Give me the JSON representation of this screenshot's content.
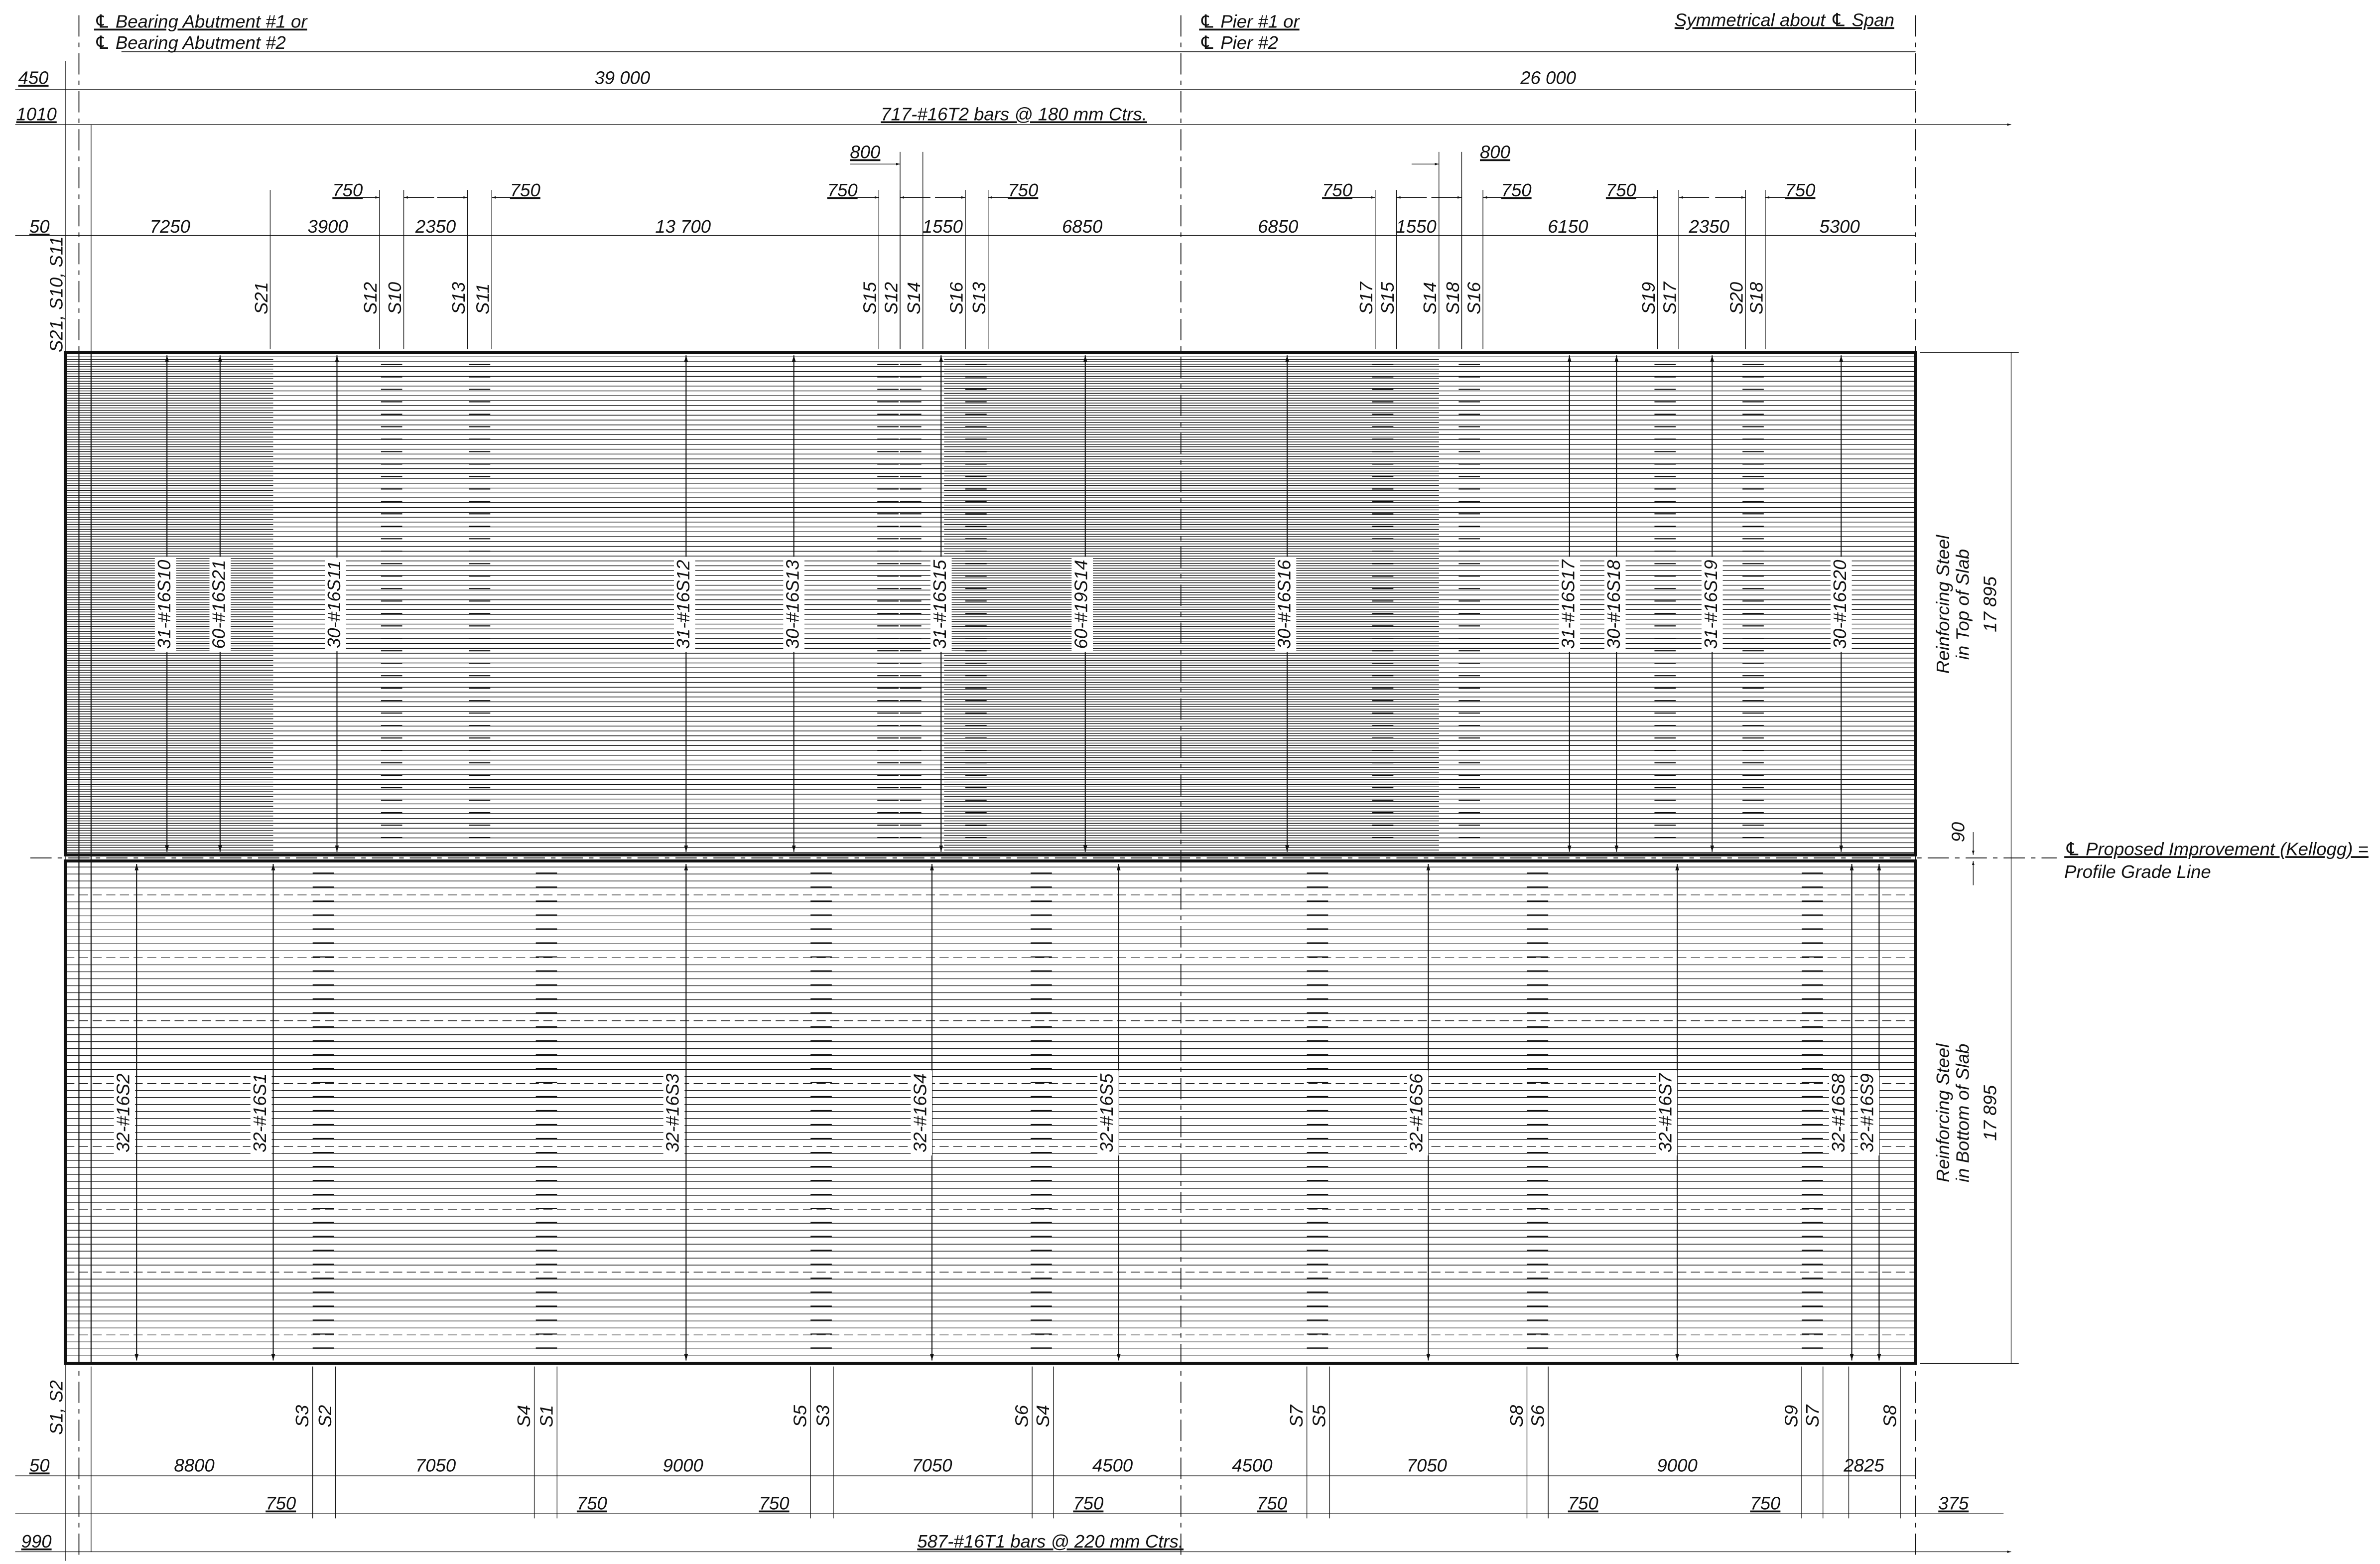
{
  "header": {
    "abutment_1": "℄ Bearing Abutment #1 or",
    "abutment_2": "℄ Bearing Abutment #2",
    "pier_1": "℄ Pier #1 or",
    "pier_2": "℄ Pier #2",
    "symmetry": "Symmetrical about ℄ Span"
  },
  "top_dims": {
    "overall": [
      "450",
      "39 000",
      "26 000"
    ],
    "bars": [
      "1010",
      "717-#16T2 bars @ 180 mm Ctrs."
    ],
    "laps_800": [
      "800",
      "800"
    ],
    "laps_750": [
      "750",
      "750",
      "750",
      "750",
      "750",
      "750",
      "750",
      "750"
    ],
    "spacing": [
      "50",
      "7250",
      "3900",
      "2350",
      "13 700",
      "1550",
      "6850",
      "6850",
      "1550",
      "6150",
      "2350",
      "5300"
    ]
  },
  "top_marks": [
    "S21, S10, S11",
    "S21",
    "S12",
    "S10",
    "S13",
    "S11",
    "S15",
    "S12",
    "S14",
    "S16",
    "S13",
    "S17",
    "S15",
    "S14",
    "S18",
    "S16",
    "S19",
    "S17",
    "S20",
    "S18"
  ],
  "top_bars": [
    "31-#16S10",
    "60-#16S21",
    "30-#16S11",
    "31-#16S12",
    "30-#16S13",
    "31-#16S15",
    "60-#19S14",
    "30-#16S16",
    "31-#16S17",
    "30-#16S18",
    "31-#16S19",
    "30-#16S20"
  ],
  "side": {
    "top_label": [
      "Reinforcing Steel",
      "in Top of Slab"
    ],
    "top_width": "17 895",
    "gap": "90",
    "profile": [
      "℄ Proposed Improvement (Kellogg) =",
      "Profile Grade Line"
    ],
    "bottom_label": [
      "Reinforcing Steel",
      "in Bottom of Slab"
    ],
    "bottom_width": "17 895"
  },
  "bottom_bars": [
    "32-#16S2",
    "32-#16S1",
    "32-#16S3",
    "32-#16S4",
    "32-#16S5",
    "32-#16S6",
    "32-#16S7",
    "32-#16S8",
    "32-#16S9"
  ],
  "bottom_marks": [
    "S1, S2",
    "S3",
    "S2",
    "S4",
    "S1",
    "S5",
    "S3",
    "S6",
    "S4",
    "S7",
    "S5",
    "S8",
    "S6",
    "S9",
    "S7",
    "S8"
  ],
  "bottom_dims": {
    "spacing": [
      "50",
      "8800",
      "7050",
      "9000",
      "7050",
      "4500",
      "4500",
      "7050",
      "9000",
      "2825"
    ],
    "laps_750": [
      "750",
      "750",
      "750",
      "750",
      "750",
      "750",
      "750"
    ],
    "end": "375",
    "bars": [
      "990",
      "587-#16T1 bars @ 220 mm Ctrs."
    ]
  }
}
